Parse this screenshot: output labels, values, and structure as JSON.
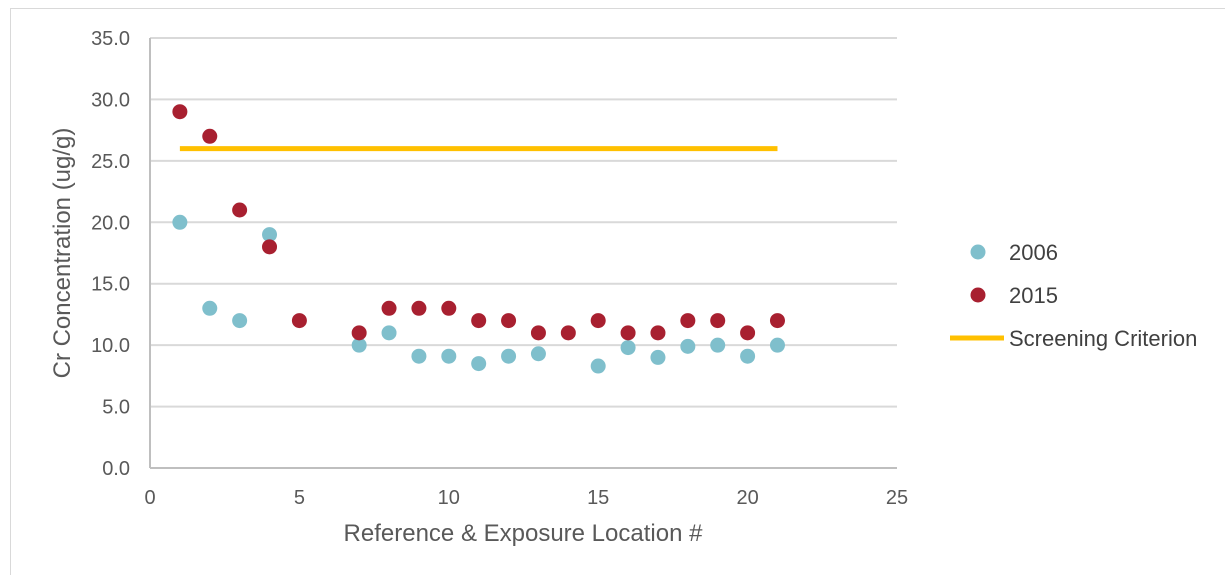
{
  "chart_data": {
    "type": "scatter",
    "title": "",
    "xlabel": "Reference & Exposure Location #",
    "ylabel": "Cr Concentration (ug/g)",
    "xlim": [
      0,
      25
    ],
    "ylim": [
      0,
      35
    ],
    "xticks": [
      "0",
      "5",
      "10",
      "15",
      "20",
      "25"
    ],
    "yticks": [
      "0.0",
      "5.0",
      "10.0",
      "15.0",
      "20.0",
      "25.0",
      "30.0",
      "35.0"
    ],
    "grid": "horizontal",
    "legend_position": "right",
    "series": [
      {
        "name": "2006",
        "color": "#7fbfcc",
        "marker": "circle",
        "points": [
          [
            1,
            20.0
          ],
          [
            2,
            13.0
          ],
          [
            3,
            12.0
          ],
          [
            4,
            19.0
          ],
          [
            7,
            10.0
          ],
          [
            8,
            11.0
          ],
          [
            9,
            9.1
          ],
          [
            10,
            9.1
          ],
          [
            11,
            8.5
          ],
          [
            12,
            9.1
          ],
          [
            13,
            9.3
          ],
          [
            15,
            8.3
          ],
          [
            16,
            9.8
          ],
          [
            17,
            9.0
          ],
          [
            18,
            9.9
          ],
          [
            19,
            10.0
          ],
          [
            20,
            9.1
          ],
          [
            21,
            10.0
          ]
        ]
      },
      {
        "name": "2015",
        "color": "#a82030",
        "marker": "circle",
        "points": [
          [
            1,
            29.0
          ],
          [
            2,
            27.0
          ],
          [
            3,
            21.0
          ],
          [
            4,
            18.0
          ],
          [
            5,
            12.0
          ],
          [
            7,
            11.0
          ],
          [
            8,
            13.0
          ],
          [
            9,
            13.0
          ],
          [
            10,
            13.0
          ],
          [
            11,
            12.0
          ],
          [
            12,
            12.0
          ],
          [
            13,
            11.0
          ],
          [
            14,
            11.0
          ],
          [
            15,
            12.0
          ],
          [
            16,
            11.0
          ],
          [
            17,
            11.0
          ],
          [
            18,
            12.0
          ],
          [
            19,
            12.0
          ],
          [
            20,
            11.0
          ],
          [
            21,
            12.0
          ]
        ]
      },
      {
        "name": "Screening Criterion",
        "color": "#ffc000",
        "marker": "line",
        "points": [
          [
            1,
            26.0
          ],
          [
            21,
            26.0
          ]
        ]
      }
    ]
  }
}
